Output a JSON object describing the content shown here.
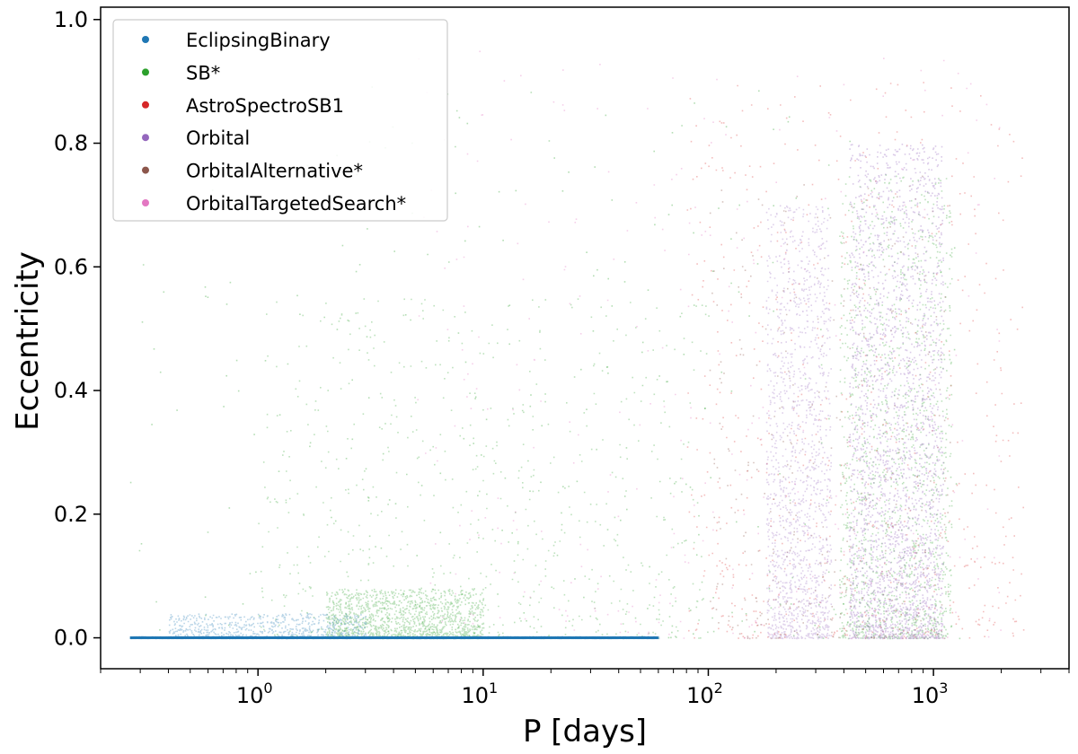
{
  "chart_data": {
    "type": "scatter",
    "title": "",
    "xlabel": "P [days]",
    "ylabel": "Eccentricity",
    "x_scale": "log",
    "xlim": [
      0.2,
      4000
    ],
    "ylim": [
      -0.05,
      1.02
    ],
    "x_ticks": [
      {
        "value": 1,
        "base": "10",
        "exp": "0"
      },
      {
        "value": 10,
        "base": "10",
        "exp": "1"
      },
      {
        "value": 100,
        "base": "10",
        "exp": "2"
      },
      {
        "value": 1000,
        "base": "10",
        "exp": "3"
      }
    ],
    "y_ticks": [
      {
        "value": 0.0,
        "label": "0.0"
      },
      {
        "value": 0.2,
        "label": "0.2"
      },
      {
        "value": 0.4,
        "label": "0.4"
      },
      {
        "value": 0.6,
        "label": "0.6"
      },
      {
        "value": 0.8,
        "label": "0.8"
      },
      {
        "value": 1.0,
        "label": "1.0"
      }
    ],
    "grid": false,
    "legend_position": "top-left",
    "series": [
      {
        "name": "EclipsingBinary",
        "color": "#1f77b4",
        "regions": [
          {
            "p_min": 0.27,
            "p_max": 60,
            "e_min": 0.0,
            "e_max": 0.003,
            "density": "very high"
          },
          {
            "p_min": 0.4,
            "p_max": 3,
            "e_min": 0.0,
            "e_max": 0.04,
            "density": "medium"
          }
        ]
      },
      {
        "name": "SB*",
        "color": "#2ca02c",
        "regions": [
          {
            "p_min": 0.27,
            "p_max": 1300,
            "e_min": 0.0,
            "e_max": 0.9,
            "density": "low"
          },
          {
            "p_min": 1,
            "p_max": 100,
            "e_min": 0.0,
            "e_max": 0.55,
            "density": "medium"
          },
          {
            "p_min": 2,
            "p_max": 10,
            "e_min": 0.0,
            "e_max": 0.08,
            "density": "high"
          },
          {
            "p_min": 380,
            "p_max": 1200,
            "e_min": 0.0,
            "e_max": 0.75,
            "density": "high"
          }
        ]
      },
      {
        "name": "AstroSpectroSB1",
        "color": "#d62728",
        "regions": [
          {
            "p_min": 80,
            "p_max": 2500,
            "e_min": 0.0,
            "e_max": 0.9,
            "density": "medium"
          }
        ]
      },
      {
        "name": "Orbital",
        "color": "#9467bd",
        "regions": [
          {
            "p_min": 180,
            "p_max": 350,
            "e_min": 0.0,
            "e_max": 0.7,
            "density": "high"
          },
          {
            "p_min": 420,
            "p_max": 1100,
            "e_min": 0.0,
            "e_max": 0.8,
            "density": "very high"
          }
        ]
      },
      {
        "name": "OrbitalAlternative*",
        "color": "#8c564b",
        "regions": [
          {
            "p_min": 100,
            "p_max": 1200,
            "e_min": 0.0,
            "e_max": 0.75,
            "density": "low"
          }
        ]
      },
      {
        "name": "OrbitalTargetedSearch*",
        "color": "#e377c2",
        "regions": [
          {
            "p_min": 5,
            "p_max": 2000,
            "e_min": 0.0,
            "e_max": 0.95,
            "density": "low"
          }
        ]
      }
    ]
  }
}
